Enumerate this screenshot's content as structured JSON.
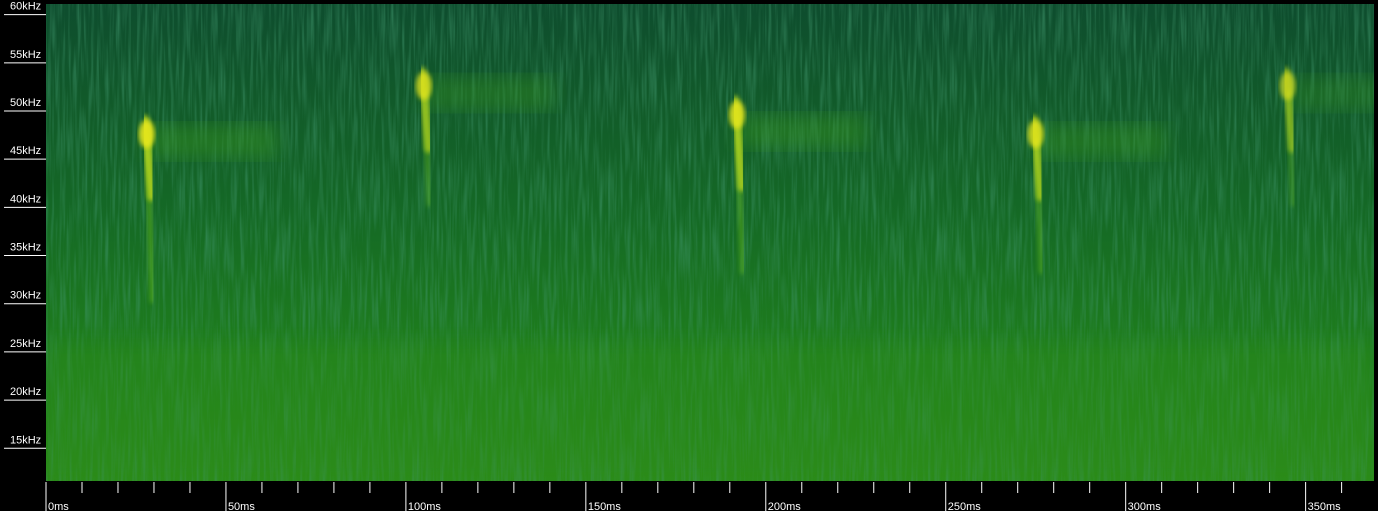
{
  "chart_data": {
    "type": "heatmap",
    "title": "",
    "xlabel": "",
    "ylabel": "",
    "x_unit": "ms",
    "y_unit": "kHz",
    "xlim": [
      0,
      369
    ],
    "ylim": [
      11.5,
      61
    ],
    "x_ticks": [
      {
        "value": 0,
        "label": "0ms"
      },
      {
        "value": 50,
        "label": "50ms"
      },
      {
        "value": 100,
        "label": "100ms"
      },
      {
        "value": 150,
        "label": "150ms"
      },
      {
        "value": 200,
        "label": "200ms"
      },
      {
        "value": 250,
        "label": "250ms"
      },
      {
        "value": 300,
        "label": "300ms"
      },
      {
        "value": 350,
        "label": "350ms"
      }
    ],
    "x_minor_step": 10,
    "y_ticks": [
      {
        "value": 60,
        "label": "60kHz"
      },
      {
        "value": 55,
        "label": "55kHz"
      },
      {
        "value": 50,
        "label": "50kHz"
      },
      {
        "value": 45,
        "label": "45kHz"
      },
      {
        "value": 40,
        "label": "40kHz"
      },
      {
        "value": 35,
        "label": "35kHz"
      },
      {
        "value": 30,
        "label": "30kHz"
      },
      {
        "value": 25,
        "label": "25kHz"
      },
      {
        "value": 20,
        "label": "20kHz"
      },
      {
        "value": 15,
        "label": "15kHz"
      }
    ],
    "calls": [
      {
        "t": 28,
        "f_start": 49,
        "f_peak": 47,
        "f_end": 30,
        "intensity": 1.0
      },
      {
        "t": 105,
        "f_start": 54,
        "f_peak": 52,
        "f_end": 40,
        "intensity": 0.85
      },
      {
        "t": 192,
        "f_start": 51,
        "f_peak": 48,
        "f_end": 33,
        "intensity": 0.95
      },
      {
        "t": 275,
        "f_start": 49,
        "f_peak": 47,
        "f_end": 33,
        "intensity": 0.9
      },
      {
        "t": 345,
        "f_start": 54,
        "f_peak": 52,
        "f_end": 40,
        "intensity": 0.7
      }
    ],
    "colors": {
      "background_dark": "#0b4a2a",
      "background_mid": "#1a7a1e",
      "low_freq_noise": "#2f8f1a",
      "call_peak": "#e8e81e",
      "axis_bg": "#000000",
      "text": "#ffffff"
    }
  }
}
